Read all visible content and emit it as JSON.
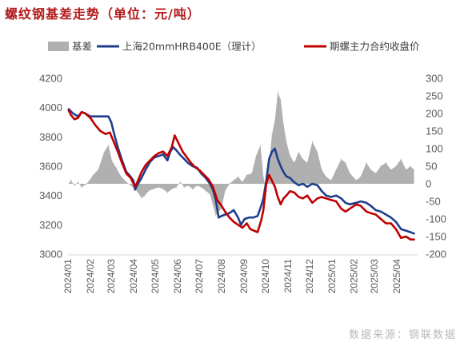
{
  "title": "螺纹钢基差走势（单位：元/吨）",
  "source": "数据来源：钢联数据",
  "chart_data": {
    "type": "line",
    "title": "螺纹钢基差走势（单位：元/吨）",
    "legend_position": "top",
    "grid": false,
    "y_left": {
      "min": 3000,
      "max": 4200,
      "step": 200,
      "ticks": [
        "3000",
        "3200",
        "3400",
        "3600",
        "3800",
        "4000",
        "4200"
      ]
    },
    "y_right": {
      "min": -200,
      "max": 300,
      "step": 50,
      "ticks": [
        "-200",
        "-150",
        "-100",
        "-50",
        "0",
        "50",
        "100",
        "150",
        "200",
        "250",
        "300"
      ]
    },
    "x_ticks": [
      "2024/01",
      "2024/02",
      "2024/03",
      "2024/04",
      "2024/05",
      "2024/06",
      "2024/07",
      "2024/08",
      "2024/09",
      "2024/10",
      "2024/11",
      "2024/12",
      "2025/01",
      "2025/02",
      "2025/03",
      "2025/04"
    ],
    "series": [
      {
        "name": "基差",
        "kind": "area",
        "axis": "right",
        "color": "#b0b0b0",
        "points": [
          [
            "2024-01-02",
            0
          ],
          [
            "2024-01-05",
            10
          ],
          [
            "2024-01-10",
            -5
          ],
          [
            "2024-01-15",
            5
          ],
          [
            "2024-01-20",
            -10
          ],
          [
            "2024-01-27",
            0
          ],
          [
            "2024-02-05",
            25
          ],
          [
            "2024-02-12",
            40
          ],
          [
            "2024-02-20",
            90
          ],
          [
            "2024-02-26",
            110
          ],
          [
            "2024-03-02",
            65
          ],
          [
            "2024-03-08",
            45
          ],
          [
            "2024-03-15",
            20
          ],
          [
            "2024-03-22",
            5
          ],
          [
            "2024-03-28",
            -5
          ],
          [
            "2024-04-03",
            -15
          ],
          [
            "2024-04-07",
            -25
          ],
          [
            "2024-04-12",
            -40
          ],
          [
            "2024-04-16",
            -35
          ],
          [
            "2024-04-22",
            -20
          ],
          [
            "2024-04-28",
            -15
          ],
          [
            "2024-05-06",
            -10
          ],
          [
            "2024-05-12",
            -15
          ],
          [
            "2024-05-18",
            -25
          ],
          [
            "2024-05-24",
            -15
          ],
          [
            "2024-05-30",
            -10
          ],
          [
            "2024-06-05",
            5
          ],
          [
            "2024-06-10",
            -10
          ],
          [
            "2024-06-16",
            -5
          ],
          [
            "2024-06-22",
            -15
          ],
          [
            "2024-06-28",
            -5
          ],
          [
            "2024-07-04",
            -10
          ],
          [
            "2024-07-10",
            -20
          ],
          [
            "2024-07-16",
            -30
          ],
          [
            "2024-07-20",
            -60
          ],
          [
            "2024-07-24",
            -90
          ],
          [
            "2024-07-28",
            -80
          ],
          [
            "2024-08-01",
            -70
          ],
          [
            "2024-08-06",
            -20
          ],
          [
            "2024-08-12",
            0
          ],
          [
            "2024-08-18",
            10
          ],
          [
            "2024-08-24",
            20
          ],
          [
            "2024-08-30",
            5
          ],
          [
            "2024-09-05",
            25
          ],
          [
            "2024-09-12",
            30
          ],
          [
            "2024-09-18",
            80
          ],
          [
            "2024-09-24",
            110
          ],
          [
            "2024-09-28",
            20
          ],
          [
            "2024-10-02",
            -20
          ],
          [
            "2024-10-06",
            60
          ],
          [
            "2024-10-10",
            140
          ],
          [
            "2024-10-14",
            180
          ],
          [
            "2024-10-18",
            260
          ],
          [
            "2024-10-22",
            240
          ],
          [
            "2024-10-26",
            170
          ],
          [
            "2024-10-30",
            120
          ],
          [
            "2024-11-04",
            80
          ],
          [
            "2024-11-10",
            60
          ],
          [
            "2024-11-16",
            90
          ],
          [
            "2024-11-22",
            70
          ],
          [
            "2024-11-28",
            60
          ],
          [
            "2024-12-05",
            120
          ],
          [
            "2024-12-12",
            90
          ],
          [
            "2024-12-18",
            40
          ],
          [
            "2024-12-24",
            20
          ],
          [
            "2024-12-31",
            10
          ],
          [
            "2025-01-07",
            40
          ],
          [
            "2025-01-14",
            70
          ],
          [
            "2025-01-20",
            60
          ],
          [
            "2025-01-26",
            30
          ],
          [
            "2025-02-04",
            10
          ],
          [
            "2025-02-10",
            20
          ],
          [
            "2025-02-18",
            60
          ],
          [
            "2025-02-24",
            40
          ],
          [
            "2025-03-03",
            30
          ],
          [
            "2025-03-10",
            50
          ],
          [
            "2025-03-17",
            60
          ],
          [
            "2025-03-24",
            40
          ],
          [
            "2025-03-31",
            50
          ],
          [
            "2025-04-07",
            70
          ],
          [
            "2025-04-14",
            40
          ],
          [
            "2025-04-20",
            50
          ],
          [
            "2025-04-25",
            40
          ]
        ]
      },
      {
        "name": "上海20mmHRB400E（理计）",
        "kind": "line",
        "axis": "left",
        "color": "#1f3e8c",
        "points": [
          [
            "2024-01-02",
            3990
          ],
          [
            "2024-01-08",
            3960
          ],
          [
            "2024-01-15",
            3940
          ],
          [
            "2024-01-20",
            3970
          ],
          [
            "2024-01-25",
            3960
          ],
          [
            "2024-02-01",
            3940
          ],
          [
            "2024-02-15",
            3940
          ],
          [
            "2024-02-26",
            3940
          ],
          [
            "2024-03-01",
            3900
          ],
          [
            "2024-03-05",
            3820
          ],
          [
            "2024-03-10",
            3730
          ],
          [
            "2024-03-16",
            3640
          ],
          [
            "2024-03-22",
            3560
          ],
          [
            "2024-03-26",
            3540
          ],
          [
            "2024-04-01",
            3500
          ],
          [
            "2024-04-03",
            3440
          ],
          [
            "2024-04-06",
            3470
          ],
          [
            "2024-04-12",
            3520
          ],
          [
            "2024-04-18",
            3580
          ],
          [
            "2024-04-24",
            3630
          ],
          [
            "2024-04-30",
            3660
          ],
          [
            "2024-05-06",
            3670
          ],
          [
            "2024-05-12",
            3680
          ],
          [
            "2024-05-18",
            3640
          ],
          [
            "2024-05-22",
            3700
          ],
          [
            "2024-05-26",
            3730
          ],
          [
            "2024-05-30",
            3710
          ],
          [
            "2024-06-04",
            3680
          ],
          [
            "2024-06-10",
            3650
          ],
          [
            "2024-06-16",
            3620
          ],
          [
            "2024-06-22",
            3600
          ],
          [
            "2024-06-28",
            3590
          ],
          [
            "2024-07-04",
            3550
          ],
          [
            "2024-07-10",
            3520
          ],
          [
            "2024-07-16",
            3480
          ],
          [
            "2024-07-20",
            3440
          ],
          [
            "2024-07-24",
            3370
          ],
          [
            "2024-07-28",
            3250
          ],
          [
            "2024-08-01",
            3260
          ],
          [
            "2024-08-06",
            3270
          ],
          [
            "2024-08-12",
            3280
          ],
          [
            "2024-08-18",
            3300
          ],
          [
            "2024-08-24",
            3250
          ],
          [
            "2024-08-28",
            3200
          ],
          [
            "2024-09-02",
            3240
          ],
          [
            "2024-09-08",
            3250
          ],
          [
            "2024-09-14",
            3250
          ],
          [
            "2024-09-20",
            3260
          ],
          [
            "2024-09-25",
            3330
          ],
          [
            "2024-09-28",
            3380
          ],
          [
            "2024-10-02",
            3500
          ],
          [
            "2024-10-06",
            3650
          ],
          [
            "2024-10-10",
            3700
          ],
          [
            "2024-10-14",
            3720
          ],
          [
            "2024-10-18",
            3650
          ],
          [
            "2024-10-22",
            3600
          ],
          [
            "2024-10-26",
            3560
          ],
          [
            "2024-10-30",
            3530
          ],
          [
            "2024-11-04",
            3520
          ],
          [
            "2024-11-10",
            3490
          ],
          [
            "2024-11-16",
            3470
          ],
          [
            "2024-11-22",
            3480
          ],
          [
            "2024-11-28",
            3460
          ],
          [
            "2024-12-05",
            3480
          ],
          [
            "2024-12-12",
            3470
          ],
          [
            "2024-12-18",
            3430
          ],
          [
            "2024-12-24",
            3400
          ],
          [
            "2024-12-31",
            3390
          ],
          [
            "2025-01-07",
            3400
          ],
          [
            "2025-01-14",
            3380
          ],
          [
            "2025-01-20",
            3350
          ],
          [
            "2025-01-26",
            3340
          ],
          [
            "2025-02-04",
            3350
          ],
          [
            "2025-02-10",
            3360
          ],
          [
            "2025-02-18",
            3350
          ],
          [
            "2025-02-24",
            3330
          ],
          [
            "2025-03-03",
            3300
          ],
          [
            "2025-03-10",
            3290
          ],
          [
            "2025-03-17",
            3270
          ],
          [
            "2025-03-24",
            3250
          ],
          [
            "2025-03-31",
            3220
          ],
          [
            "2025-04-07",
            3170
          ],
          [
            "2025-04-14",
            3160
          ],
          [
            "2025-04-20",
            3150
          ],
          [
            "2025-04-25",
            3140
          ]
        ]
      },
      {
        "name": "期螺主力合约收盘价",
        "kind": "line",
        "axis": "left",
        "color": "#c00000",
        "points": [
          [
            "2024-01-02",
            3980
          ],
          [
            "2024-01-05",
            3950
          ],
          [
            "2024-01-10",
            3920
          ],
          [
            "2024-01-15",
            3930
          ],
          [
            "2024-01-20",
            3970
          ],
          [
            "2024-01-25",
            3960
          ],
          [
            "2024-02-01",
            3930
          ],
          [
            "2024-02-08",
            3880
          ],
          [
            "2024-02-15",
            3840
          ],
          [
            "2024-02-22",
            3820
          ],
          [
            "2024-02-28",
            3830
          ],
          [
            "2024-03-05",
            3760
          ],
          [
            "2024-03-10",
            3700
          ],
          [
            "2024-03-16",
            3620
          ],
          [
            "2024-03-22",
            3550
          ],
          [
            "2024-03-28",
            3520
          ],
          [
            "2024-04-03",
            3460
          ],
          [
            "2024-04-07",
            3500
          ],
          [
            "2024-04-12",
            3560
          ],
          [
            "2024-04-18",
            3610
          ],
          [
            "2024-04-24",
            3640
          ],
          [
            "2024-04-30",
            3670
          ],
          [
            "2024-05-06",
            3690
          ],
          [
            "2024-05-12",
            3700
          ],
          [
            "2024-05-18",
            3670
          ],
          [
            "2024-05-24",
            3730
          ],
          [
            "2024-05-28",
            3810
          ],
          [
            "2024-06-02",
            3760
          ],
          [
            "2024-06-08",
            3700
          ],
          [
            "2024-06-14",
            3660
          ],
          [
            "2024-06-20",
            3620
          ],
          [
            "2024-06-26",
            3590
          ],
          [
            "2024-07-02",
            3570
          ],
          [
            "2024-07-08",
            3540
          ],
          [
            "2024-07-14",
            3510
          ],
          [
            "2024-07-20",
            3460
          ],
          [
            "2024-07-26",
            3370
          ],
          [
            "2024-08-01",
            3330
          ],
          [
            "2024-08-06",
            3290
          ],
          [
            "2024-08-12",
            3250
          ],
          [
            "2024-08-18",
            3220
          ],
          [
            "2024-08-24",
            3200
          ],
          [
            "2024-08-30",
            3180
          ],
          [
            "2024-09-05",
            3210
          ],
          [
            "2024-09-10",
            3170
          ],
          [
            "2024-09-15",
            3160
          ],
          [
            "2024-09-20",
            3150
          ],
          [
            "2024-09-25",
            3230
          ],
          [
            "2024-09-28",
            3300
          ],
          [
            "2024-10-02",
            3480
          ],
          [
            "2024-10-06",
            3540
          ],
          [
            "2024-10-10",
            3500
          ],
          [
            "2024-10-14",
            3460
          ],
          [
            "2024-10-18",
            3390
          ],
          [
            "2024-10-22",
            3340
          ],
          [
            "2024-10-26",
            3380
          ],
          [
            "2024-10-30",
            3400
          ],
          [
            "2024-11-04",
            3430
          ],
          [
            "2024-11-10",
            3420
          ],
          [
            "2024-11-16",
            3390
          ],
          [
            "2024-11-22",
            3380
          ],
          [
            "2024-11-28",
            3400
          ],
          [
            "2024-12-05",
            3350
          ],
          [
            "2024-12-12",
            3380
          ],
          [
            "2024-12-18",
            3390
          ],
          [
            "2024-12-24",
            3380
          ],
          [
            "2024-12-31",
            3370
          ],
          [
            "2025-01-07",
            3360
          ],
          [
            "2025-01-14",
            3310
          ],
          [
            "2025-01-20",
            3290
          ],
          [
            "2025-01-26",
            3310
          ],
          [
            "2025-02-04",
            3340
          ],
          [
            "2025-02-10",
            3330
          ],
          [
            "2025-02-18",
            3290
          ],
          [
            "2025-02-24",
            3280
          ],
          [
            "2025-03-03",
            3270
          ],
          [
            "2025-03-10",
            3240
          ],
          [
            "2025-03-17",
            3210
          ],
          [
            "2025-03-24",
            3210
          ],
          [
            "2025-03-31",
            3170
          ],
          [
            "2025-04-07",
            3110
          ],
          [
            "2025-04-14",
            3120
          ],
          [
            "2025-04-20",
            3100
          ],
          [
            "2025-04-25",
            3100
          ]
        ]
      }
    ]
  }
}
